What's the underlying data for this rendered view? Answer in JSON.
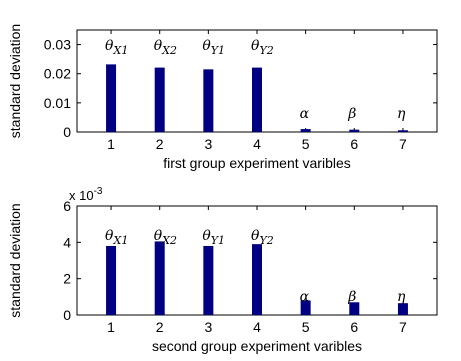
{
  "chart_data": [
    {
      "type": "bar",
      "categories": [
        "1",
        "2",
        "3",
        "4",
        "5",
        "6",
        "7"
      ],
      "values": [
        0.0232,
        0.0221,
        0.0215,
        0.0221,
        0.001,
        0.0008,
        0.0006
      ],
      "bar_labels": [
        {
          "sym": "θ",
          "sub": "X1"
        },
        {
          "sym": "θ",
          "sub": "X2"
        },
        {
          "sym": "θ",
          "sub": "Y1"
        },
        {
          "sym": "θ",
          "sub": "Y2"
        },
        {
          "sym": "α",
          "sub": ""
        },
        {
          "sym": "β",
          "sub": ""
        },
        {
          "sym": "η",
          "sub": ""
        }
      ],
      "xlabel": "first group experiment varibles",
      "ylabel": "standard deviation",
      "ylim": [
        0,
        0.035
      ],
      "yticks": [
        0,
        0.01,
        0.02,
        0.03
      ],
      "ytick_labels": [
        "0",
        "0.01",
        "0.02",
        "0.03"
      ],
      "exponent_label": null,
      "bar_color": "#000080",
      "grid": false,
      "legend": "none"
    },
    {
      "type": "bar",
      "categories": [
        "1",
        "2",
        "3",
        "4",
        "5",
        "6",
        "7"
      ],
      "values": [
        3.8,
        4.05,
        3.8,
        3.9,
        0.8,
        0.7,
        0.65
      ],
      "bar_labels": [
        {
          "sym": "θ",
          "sub": "X1"
        },
        {
          "sym": "θ",
          "sub": "X2"
        },
        {
          "sym": "θ",
          "sub": "Y1"
        },
        {
          "sym": "θ",
          "sub": "Y2"
        },
        {
          "sym": "α",
          "sub": ""
        },
        {
          "sym": "β",
          "sub": ""
        },
        {
          "sym": "η",
          "sub": ""
        }
      ],
      "xlabel": "second group experiment varibles",
      "ylabel": "standard deviation",
      "ylim": [
        0,
        6
      ],
      "yticks": [
        0,
        2,
        4,
        6
      ],
      "ytick_labels": [
        "0",
        "2",
        "4",
        "6"
      ],
      "exponent_label": {
        "base": "x 10",
        "power": "-3"
      },
      "bar_color": "#000080",
      "grid": false,
      "legend": "none"
    }
  ]
}
